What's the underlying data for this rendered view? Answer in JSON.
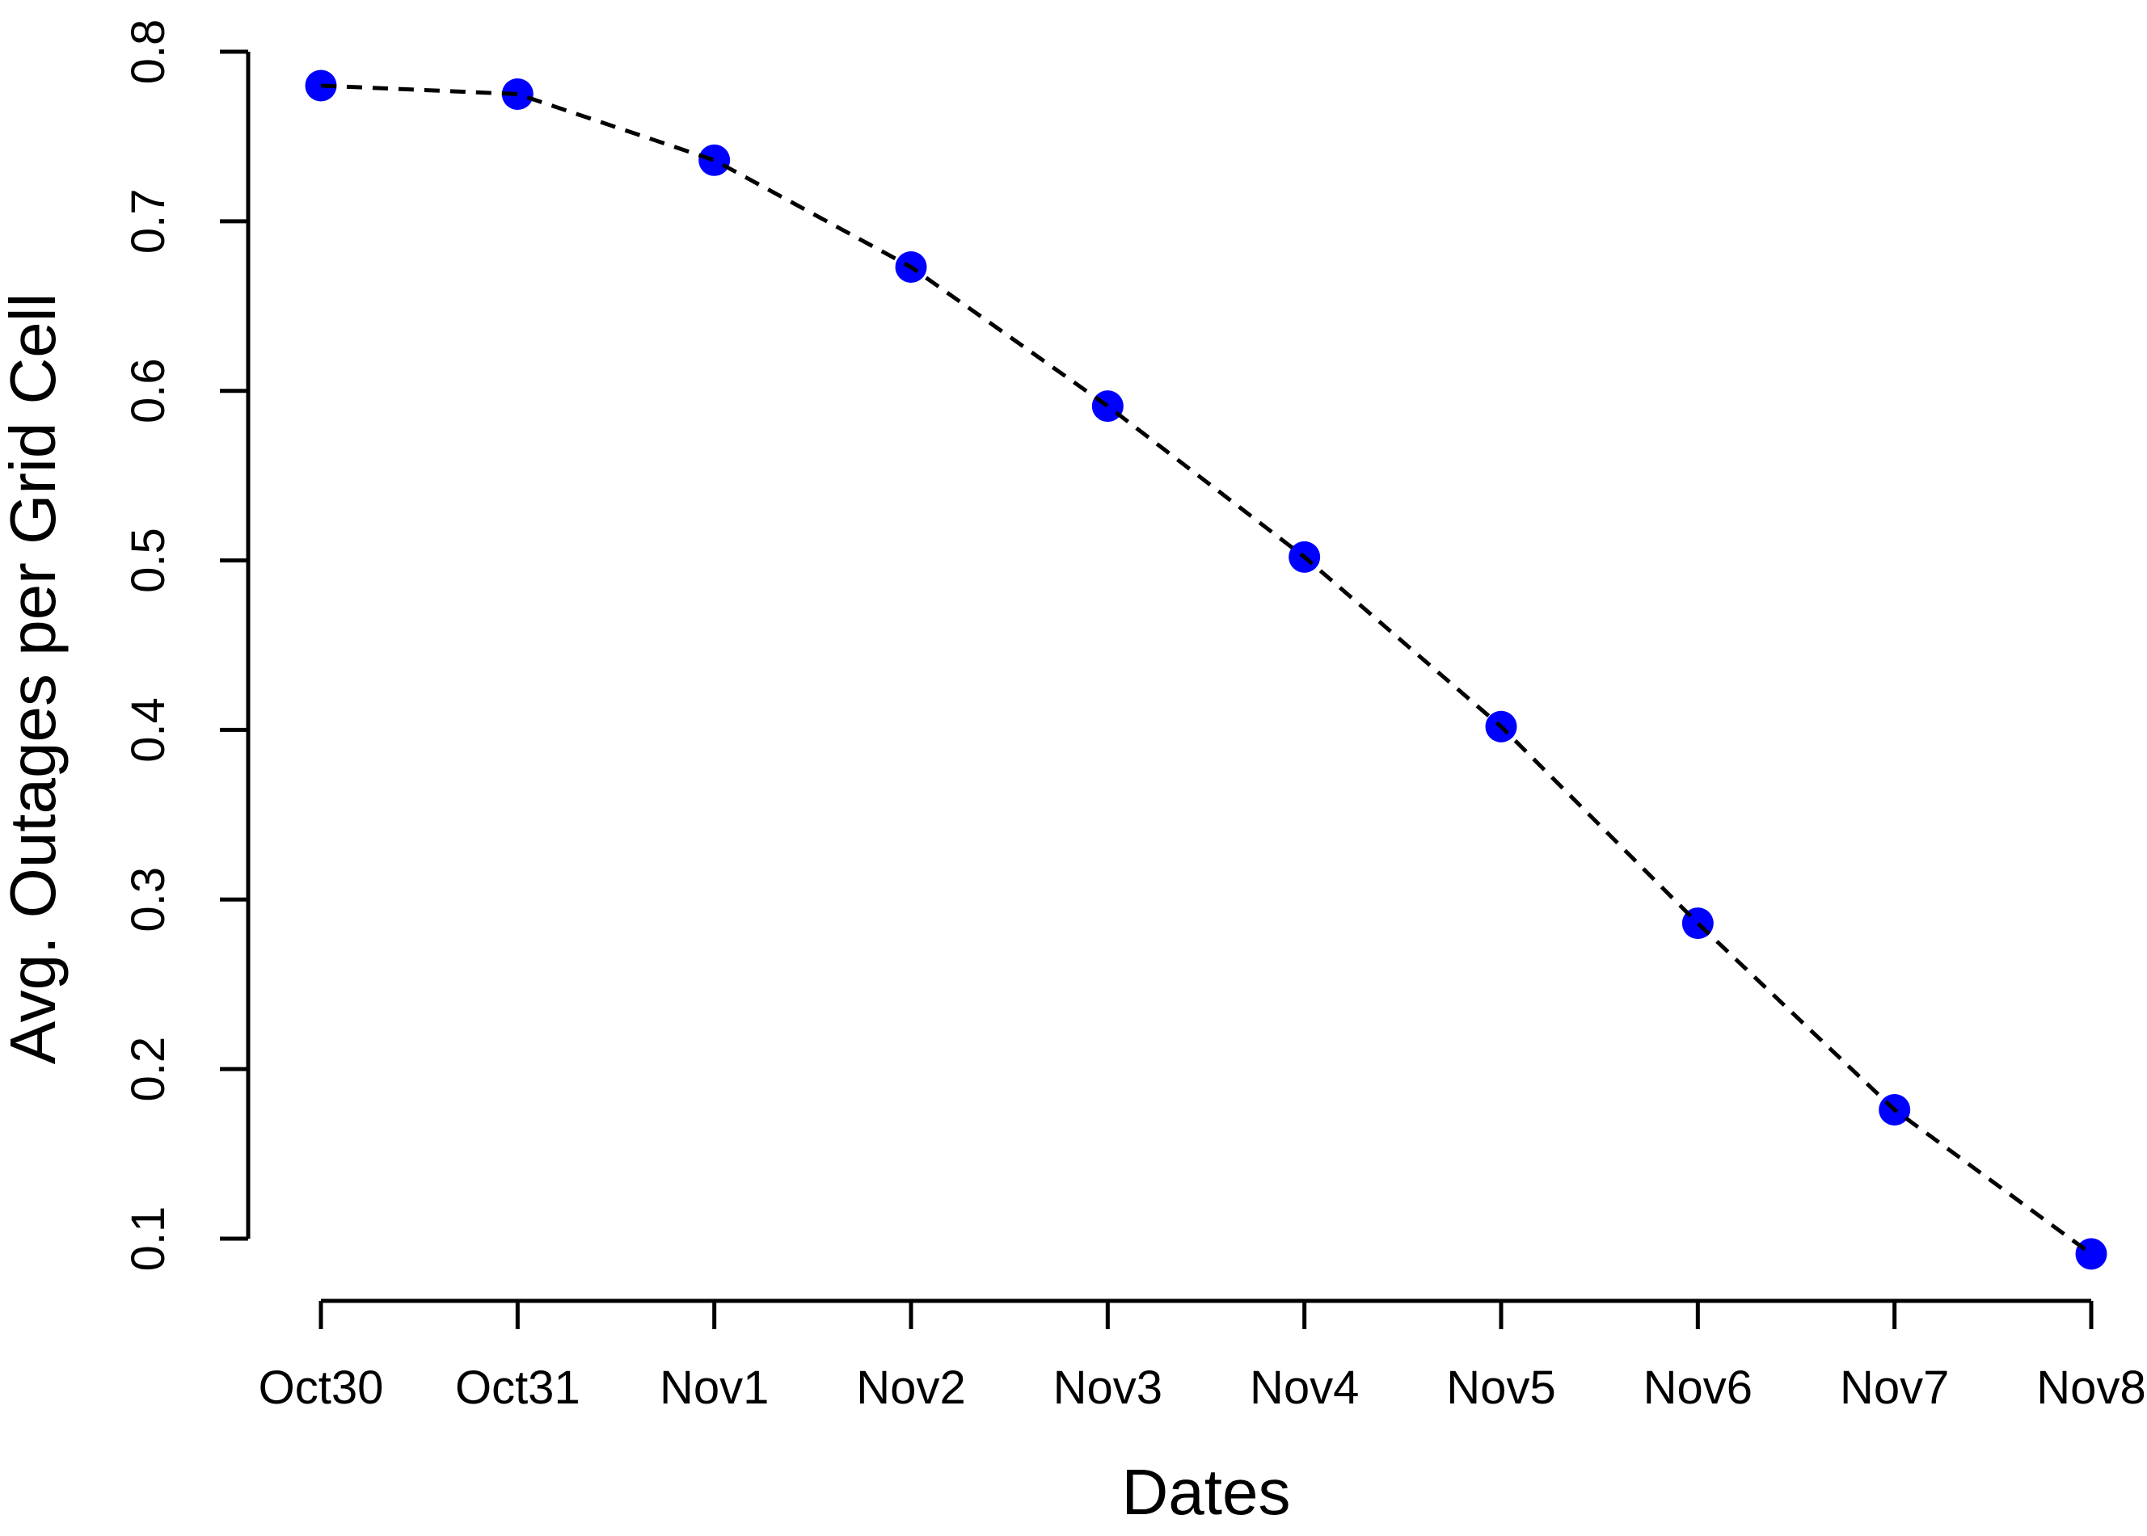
{
  "chart_data": {
    "type": "line",
    "title": "",
    "xlabel": "Dates",
    "ylabel": "Avg. Outages per Grid Cell",
    "categories": [
      "Oct30",
      "Oct31",
      "Nov1",
      "Nov2",
      "Nov3",
      "Nov4",
      "Nov5",
      "Nov6",
      "Nov7",
      "Nov8"
    ],
    "series": [
      {
        "name": "Avg. Outages per Grid Cell",
        "values": [
          0.78,
          0.775,
          0.736,
          0.673,
          0.591,
          0.502,
          0.402,
          0.286,
          0.176,
          0.091
        ]
      }
    ],
    "y_ticks": [
      0.1,
      0.2,
      0.3,
      0.4,
      0.5,
      0.6,
      0.7,
      0.8
    ],
    "y_tick_labels": [
      "0.1",
      "0.2",
      "0.3",
      "0.4",
      "0.5",
      "0.6",
      "0.7",
      "0.8"
    ],
    "ylim": [
      0.1,
      0.8
    ],
    "grid": false,
    "legend_position": "none",
    "marker_shape": "filled-circle",
    "marker_color": "#0000FF",
    "line_style": "dashed",
    "line_color": "#000000",
    "axis_color": "#000000",
    "background_color": "#FFFFFF"
  }
}
